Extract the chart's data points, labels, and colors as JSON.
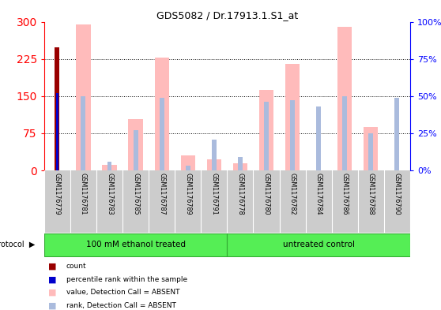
{
  "title": "GDS5082 / Dr.17913.1.S1_at",
  "samples": [
    "GSM1176779",
    "GSM1176781",
    "GSM1176783",
    "GSM1176785",
    "GSM1176787",
    "GSM1176789",
    "GSM1176791",
    "GSM1176778",
    "GSM1176780",
    "GSM1176782",
    "GSM1176784",
    "GSM1176786",
    "GSM1176788",
    "GSM1176790"
  ],
  "count_values": [
    248,
    0,
    0,
    0,
    0,
    0,
    0,
    0,
    0,
    0,
    0,
    0,
    0,
    0
  ],
  "value_absent": [
    0,
    294,
    12,
    103,
    228,
    30,
    22,
    15,
    163,
    215,
    0,
    290,
    88,
    0
  ],
  "rank_absent_pct": [
    52,
    50,
    6,
    27,
    49,
    3,
    21,
    9,
    46,
    47,
    43,
    50,
    25,
    49
  ],
  "percentile_rank_pct": [
    52,
    0,
    0,
    0,
    0,
    0,
    0,
    0,
    0,
    0,
    0,
    0,
    0,
    0
  ],
  "left_ylim": [
    0,
    300
  ],
  "right_ylim": [
    0,
    100
  ],
  "left_yticks": [
    0,
    75,
    150,
    225,
    300
  ],
  "right_yticks": [
    0,
    25,
    50,
    75,
    100
  ],
  "right_yticklabels": [
    "0%",
    "25%",
    "50%",
    "75%",
    "100%"
  ],
  "protocols": [
    "100 mM ethanol treated",
    "untreated control"
  ],
  "protocol_split": 7,
  "protocol_color": "#55ee55",
  "count_color": "#990000",
  "percentile_color": "#0000cc",
  "value_absent_color": "#ffbbbb",
  "rank_absent_color": "#aabbdd",
  "bg_color": "#ffffff",
  "tick_bg": "#cccccc",
  "grid_color": "#222222"
}
